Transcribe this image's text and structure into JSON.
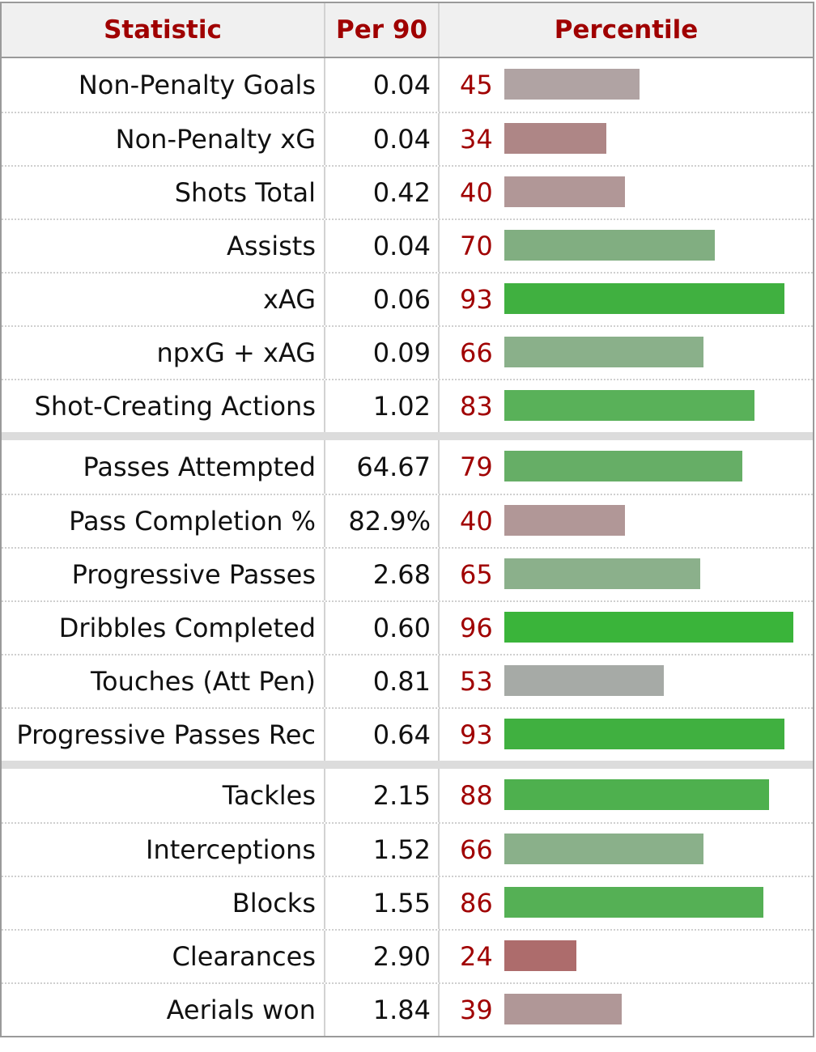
{
  "headers": {
    "statistic": "Statistic",
    "per90": "Per 90",
    "percentile": "Percentile"
  },
  "groups": [
    [
      {
        "stat": "Non-Penalty Goals",
        "per90": "0.04",
        "percentile": 45,
        "color": "#b0a3a3"
      },
      {
        "stat": "Non-Penalty xG",
        "per90": "0.04",
        "percentile": 34,
        "color": "#ae8686"
      },
      {
        "stat": "Shots Total",
        "per90": "0.42",
        "percentile": 40,
        "color": "#b19797"
      },
      {
        "stat": "Assists",
        "per90": "0.04",
        "percentile": 70,
        "color": "#81ae81"
      },
      {
        "stat": "xAG",
        "per90": "0.06",
        "percentile": 93,
        "color": "#40b040"
      },
      {
        "stat": "npxG + xAG",
        "per90": "0.09",
        "percentile": 66,
        "color": "#8ab08a"
      },
      {
        "stat": "Shot-Creating Actions",
        "per90": "1.02",
        "percentile": 83,
        "color": "#59b159"
      }
    ],
    [
      {
        "stat": "Passes Attempted",
        "per90": "64.67",
        "percentile": 79,
        "color": "#66ae66"
      },
      {
        "stat": "Pass Completion %",
        "per90": "82.9%",
        "percentile": 40,
        "color": "#b19797"
      },
      {
        "stat": "Progressive Passes",
        "per90": "2.68",
        "percentile": 65,
        "color": "#8bb08b"
      },
      {
        "stat": "Dribbles Completed",
        "per90": "0.60",
        "percentile": 96,
        "color": "#3ab43a"
      },
      {
        "stat": "Touches (Att Pen)",
        "per90": "0.81",
        "percentile": 53,
        "color": "#a6aaa6"
      },
      {
        "stat": "Progressive Passes Rec",
        "per90": "0.64",
        "percentile": 93,
        "color": "#40b040"
      }
    ],
    [
      {
        "stat": "Tackles",
        "per90": "2.15",
        "percentile": 88,
        "color": "#4eb04e"
      },
      {
        "stat": "Interceptions",
        "per90": "1.52",
        "percentile": 66,
        "color": "#8ab08a"
      },
      {
        "stat": "Blocks",
        "per90": "1.55",
        "percentile": 86,
        "color": "#55b055"
      },
      {
        "stat": "Clearances",
        "per90": "2.90",
        "percentile": 24,
        "color": "#ad6c6c"
      },
      {
        "stat": "Aerials won",
        "per90": "1.84",
        "percentile": 39,
        "color": "#b09797"
      }
    ]
  ]
}
